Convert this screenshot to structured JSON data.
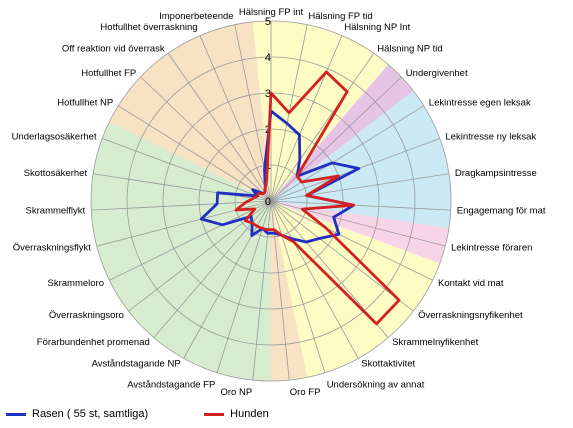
{
  "chart_data": {
    "type": "radar",
    "r_ticks": [
      "0",
      "1",
      "2",
      "3",
      "4",
      "5"
    ],
    "rlim": [
      0,
      5
    ],
    "grid": true,
    "legend_position": "bottom-left",
    "categories": [
      "Hälsning FP int",
      "Hälsning FP tid",
      "Hälsning NP Int",
      "Hälsning NP tid",
      "Undergivenhet",
      "Lekintresse egen leksak",
      "Lekintresse ny leksak",
      "Dragkampsintresse",
      "Engagemang för mat",
      "Lekintresse föraren",
      "Kontakt vid mat",
      "Överraskningsnyfikenhet",
      "Skrammelnyfikenhet",
      "Skottaktivitet",
      "Undersökning av annat",
      "Oro FP",
      "Oro NP",
      "Avståndstagande FP",
      "Avståndstagande NP",
      "Förarbundenhet promenad",
      "Överraskningsoro",
      "Skrammeloro",
      "Överraskningsflykt",
      "Skrammelflykt",
      "Skottosäkerhet",
      "Underlagsosäkerhet",
      "Hotfullhet NP",
      "Hotfullhet FP",
      "Off reaktion vid överrask",
      "Hotfullhet överraskning",
      "Imponerbeteende"
    ],
    "series": [
      {
        "name": "Rasen ( 55 st, samtliga)",
        "color": "#1f2fbf",
        "values": [
          2.5,
          2.2,
          2.0,
          1.4,
          1.0,
          2.0,
          2.6,
          1.0,
          2.3,
          1.8,
          2.1,
          1.7,
          1.5,
          1.2,
          1.0,
          0.9,
          0.9,
          0.8,
          1.1,
          0.8,
          0.7,
          1.5,
          2.0,
          1.5,
          1.5,
          0.4,
          0.6,
          0.3,
          0.3,
          0.4,
          0.9
        ]
      },
      {
        "name": "Hunden",
        "color": "#d42020",
        "values": [
          3.0,
          2.5,
          3.9,
          3.7,
          1.0,
          1.0,
          2.0,
          1.0,
          2.3,
          0.9,
          1.7,
          4.5,
          4.5,
          1.3,
          1.0,
          0.8,
          0.8,
          0.8,
          0.8,
          0.8,
          0.9,
          0.5,
          1.0,
          0.7,
          0.5,
          0.4,
          0.4,
          0.3,
          0.3,
          0.4,
          0.6
        ]
      }
    ],
    "sectors": [
      {
        "from": "Hälsning FP int",
        "to": "Hälsning NP tid",
        "color": "#fdfcc4"
      },
      {
        "from": "Undergivenhet",
        "to": "Undergivenhet",
        "color": "#e6c4e6"
      },
      {
        "from": "Lekintresse egen leksak",
        "to": "Engagemang för mat",
        "color": "#cce9f6"
      },
      {
        "from": "Lekintresse föraren",
        "to": "Lekintresse föraren",
        "color": "#f8d5e6"
      },
      {
        "from": "Kontakt vid mat",
        "to": "Undersökning av annat",
        "color": "#fdfcc4"
      },
      {
        "from": "Oro FP",
        "to": "Oro FP",
        "color": "#f7e3c4"
      },
      {
        "from": "Oro NP",
        "to": "Underlagsosäkerhet",
        "color": "#d8edd0"
      },
      {
        "from": "Hotfullhet NP",
        "to": "Imponerbeteende",
        "color": "#f7e3c4"
      }
    ]
  }
}
